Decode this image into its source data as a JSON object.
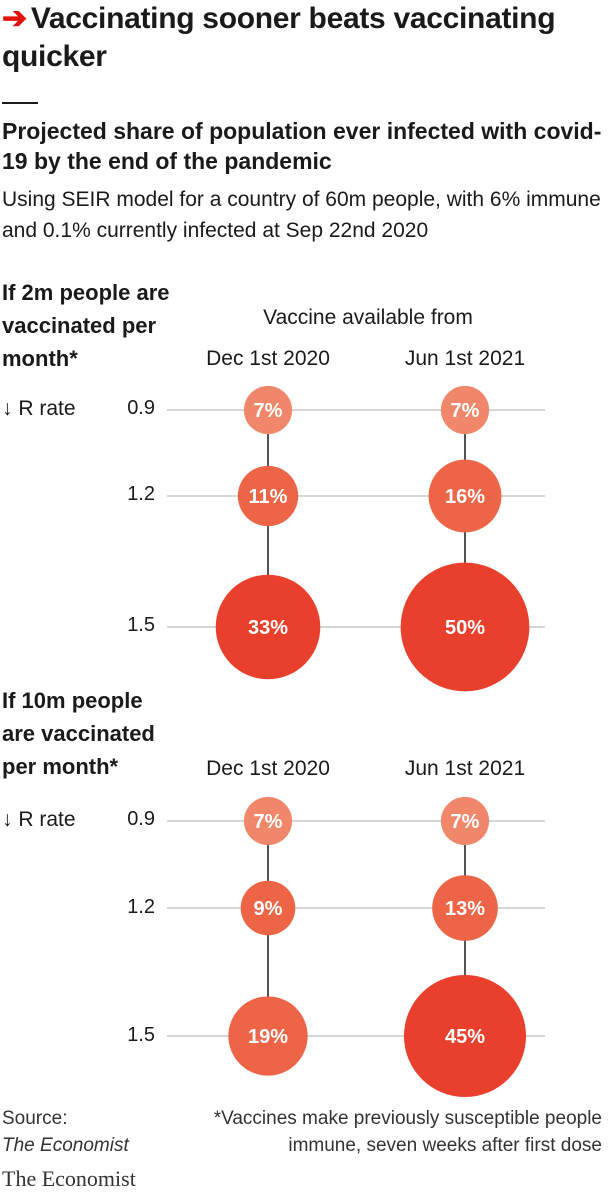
{
  "headline": {
    "arrow": "➔",
    "text": "Vaccinating sooner beats vaccinating quicker"
  },
  "subtitle": "Projected share of population ever infected with covid-19 by the end of the pandemic",
  "description": "Using SEIR model for a country of 60m people, with 6% immune and 0.1% currently infected at Sep 22nd 2020",
  "available_label": "Vaccine available from",
  "r_rate_label": "↓ R rate",
  "colors": {
    "low": "#f0866a",
    "mid": "#ed6446",
    "high": "#e8402c",
    "grid": "#c8c8c8",
    "stem": "#1a1a1a",
    "accent": "#e3120b"
  },
  "chart_data": [
    {
      "type": "bubble",
      "title": "If 2m people are vaccinated per month*",
      "categories": [
        "Dec 1st 2020",
        "Jun 1st 2021"
      ],
      "r_rates": [
        "0.9",
        "1.2",
        "1.5"
      ],
      "series": [
        {
          "name": "Dec 1st 2020",
          "values": [
            7,
            11,
            33
          ],
          "labels": [
            "7%",
            "11%",
            "33%"
          ]
        },
        {
          "name": "Jun 1st 2021",
          "values": [
            7,
            16,
            50
          ],
          "labels": [
            "7%",
            "16%",
            "50%"
          ]
        }
      ]
    },
    {
      "type": "bubble",
      "title": "If 10m people are vaccinated per month*",
      "categories": [
        "Dec 1st 2020",
        "Jun 1st 2021"
      ],
      "r_rates": [
        "0.9",
        "1.2",
        "1.5"
      ],
      "series": [
        {
          "name": "Dec 1st 2020",
          "values": [
            7,
            9,
            19
          ],
          "labels": [
            "7%",
            "9%",
            "19%"
          ]
        },
        {
          "name": "Jun 1st 2021",
          "values": [
            7,
            13,
            45
          ],
          "labels": [
            "7%",
            "13%",
            "45%"
          ]
        }
      ]
    }
  ],
  "footer": {
    "source_label": "Source:",
    "source_name": "The Economist",
    "note": "*Vaccines make previously susceptible people immune, seven weeks after first dose",
    "brand": "The Economist"
  }
}
